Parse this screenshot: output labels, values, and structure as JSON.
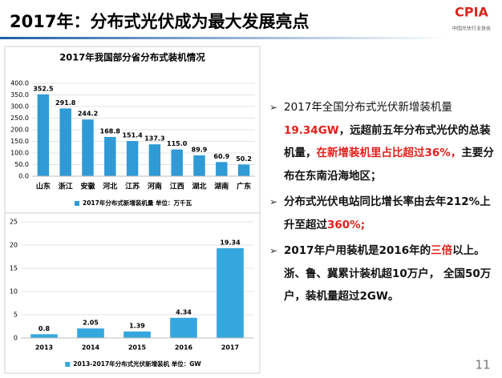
{
  "slide": {
    "title": "2017年：分布式光伏成为最大发展亮点",
    "logo": "CPIA",
    "logo_subtitle": "中国光伏行业协会",
    "page_number": "11",
    "bullets": [
      [
        "2017年全国分布式光伏新增装机量",
        "19.34GW",
        "，远超前五年分布式光伏的总装机量，",
        "在新增装机里占比超过36%，",
        "主要分布在东南沿海地区；"
      ],
      [
        "分布式光伏电站同比增长率由去年212%上升至超过",
        "360%;"
      ],
      [
        "2017年户用装机是2016年的",
        "三倍",
        "以上。浙、鲁、冀累计装机超10万户， 全国50万户，装机量超过2GW。"
      ]
    ]
  },
  "chart_data": [
    {
      "type": "bar",
      "title": "2017年我国部分省分布式装机情况",
      "categories": [
        "山东",
        "浙江",
        "安徽",
        "河北",
        "江苏",
        "河南",
        "江西",
        "湖北",
        "湖南",
        "广东"
      ],
      "series": [
        {
          "name": "2017年分布式新增装机量  单位：万千瓦",
          "color": "#2f9ad6",
          "values": [
            352.5,
            291.8,
            244.2,
            168.8,
            151.4,
            137.3,
            115.0,
            89.9,
            60.9,
            50.2
          ],
          "value_labels": [
            "352.5",
            "291.8",
            "244.2",
            "168.8",
            "151.4",
            "137.3",
            "115.0",
            "89.9",
            "60.9",
            "50.2"
          ]
        }
      ],
      "ylim": [
        0,
        400
      ],
      "yticks": [
        {
          "value": 0,
          "label": "0.0"
        },
        {
          "value": 50,
          "label": "50.0"
        },
        {
          "value": 100,
          "label": "100.0"
        },
        {
          "value": 150,
          "label": "150.0"
        },
        {
          "value": 200,
          "label": "200.0"
        },
        {
          "value": 250,
          "label": "250.0"
        },
        {
          "value": 300,
          "label": "300.0"
        },
        {
          "value": 350,
          "label": "350.0"
        },
        {
          "value": 400,
          "label": "400.0"
        }
      ],
      "grid": true
    },
    {
      "type": "bar",
      "categories": [
        "2013",
        "2014",
        "2015",
        "2016",
        "2017"
      ],
      "series": [
        {
          "name": "2013-2017年分布式光伏新增装机  单位：GW",
          "color": "#35a7df",
          "values": [
            0.8,
            2.05,
            1.39,
            4.34,
            19.34
          ]
        }
      ],
      "ylim": [
        0,
        25
      ],
      "yticks": [
        0,
        5,
        10,
        15,
        20,
        25
      ],
      "grid": true
    }
  ]
}
